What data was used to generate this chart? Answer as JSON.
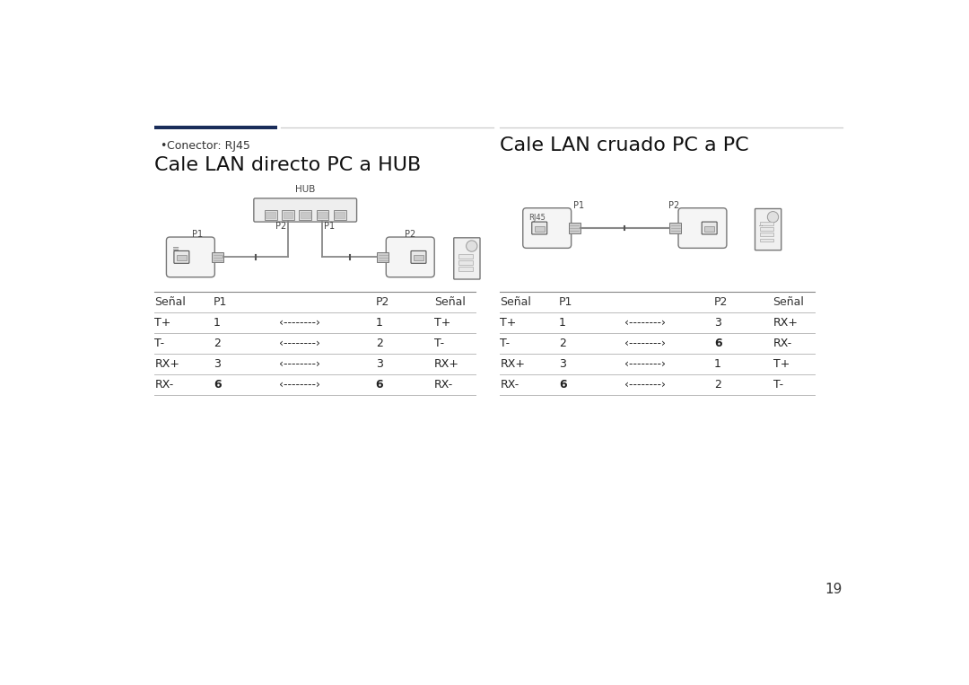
{
  "bg_color": "#ffffff",
  "page_number": "19",
  "dark_line_color": "#1a2d5a",
  "left_section": {
    "bullet_text": "Conector: RJ45",
    "title": "Cale LAN directo PC a HUB",
    "table_header": [
      "Señal",
      "P1",
      "",
      "P2",
      "Señal"
    ],
    "table_rows": [
      [
        "T+",
        "1",
        "‹--------›",
        "1",
        "T+"
      ],
      [
        "T-",
        "2",
        "‹--------›",
        "2",
        "T-"
      ],
      [
        "RX+",
        "3",
        "‹--------›",
        "3",
        "RX+"
      ],
      [
        "RX-",
        "6",
        "‹--------›",
        "6",
        "RX-"
      ]
    ]
  },
  "right_section": {
    "title": "Cale LAN cruado PC a PC",
    "table_header": [
      "Señal",
      "P1",
      "",
      "P2",
      "Señal"
    ],
    "table_rows": [
      [
        "T+",
        "1",
        "‹--------›",
        "3",
        "RX+"
      ],
      [
        "T-",
        "2",
        "‹--------›",
        "6",
        "RX-"
      ],
      [
        "RX+",
        "3",
        "‹--------›",
        "1",
        "T+"
      ],
      [
        "RX-",
        "6",
        "‹--------›",
        "2",
        "T-"
      ]
    ]
  }
}
